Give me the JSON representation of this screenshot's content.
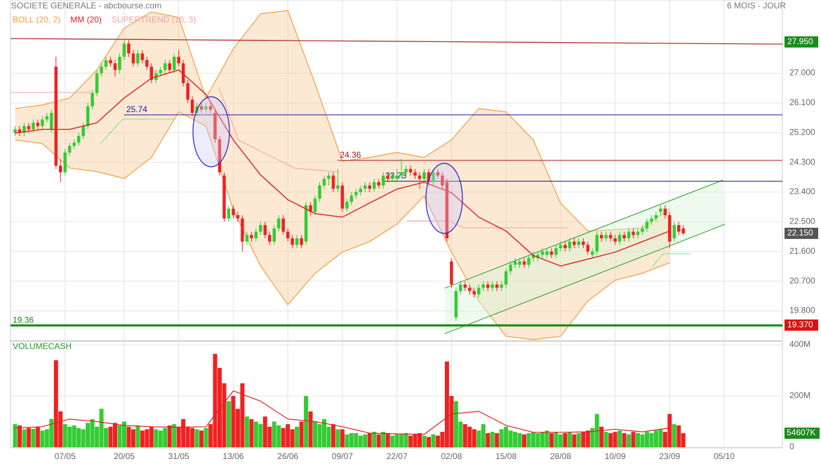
{
  "chart_data": {
    "type": "candlestick",
    "title": "SOCIETE GENERALE - abcbourse.com",
    "period": "6 MOIS - JOUR",
    "legend": [
      {
        "name": "BOLL (20, 2)",
        "color": "#f0a040"
      },
      {
        "name": "MM (20)",
        "color": "#e02020"
      },
      {
        "name": "SUPERTREND (10, 3)",
        "color": "#f4a0a0"
      }
    ],
    "volume_title": "VOLUMECASH",
    "ylim": [
      18.92,
      29.22
    ],
    "yticks": [
      {
        "value": 27,
        "label": "27.000"
      },
      {
        "value": 26.1,
        "label": "26.100"
      },
      {
        "value": 25.2,
        "label": "25.200"
      },
      {
        "value": 24.3,
        "label": "24.300"
      },
      {
        "value": 23.4,
        "label": "23.400"
      },
      {
        "value": 22.5,
        "label": "22.500"
      },
      {
        "value": 21.6,
        "label": "21.600"
      },
      {
        "value": 20.7,
        "label": "20.700"
      },
      {
        "value": 19.8,
        "label": "19.800"
      }
    ],
    "xlim": [
      -1,
      168.8
    ],
    "xticks": [
      {
        "value": 11,
        "label": "07/05"
      },
      {
        "value": 24,
        "label": "20/05"
      },
      {
        "value": 36,
        "label": "31/05"
      },
      {
        "value": 48,
        "label": "13/06"
      },
      {
        "value": 60,
        "label": "26/06"
      },
      {
        "value": 72,
        "label": "09/07"
      },
      {
        "value": 84,
        "label": "22/07"
      },
      {
        "value": 96,
        "label": "02/08"
      },
      {
        "value": 108,
        "label": "15/08"
      },
      {
        "value": 120,
        "label": "28/08"
      },
      {
        "value": 132,
        "label": "10/09"
      },
      {
        "value": 144,
        "label": "23/09"
      },
      {
        "value": 156,
        "label": "05/10"
      }
    ],
    "ohlc": [
      [
        25.2,
        25.4,
        25.1,
        25.3
      ],
      [
        25.3,
        25.4,
        25.1,
        25.2
      ],
      [
        25.2,
        25.5,
        25.1,
        25.4
      ],
      [
        25.4,
        25.5,
        25.2,
        25.3
      ],
      [
        25.3,
        25.6,
        25.2,
        25.5
      ],
      [
        25.5,
        25.6,
        25.3,
        25.4
      ],
      [
        25.4,
        25.7,
        25.3,
        25.6
      ],
      [
        25.6,
        25.8,
        25.5,
        25.7
      ],
      [
        25.3,
        25.9,
        25.2,
        25.8
      ],
      [
        27.2,
        27.5,
        24.1,
        24.2
      ],
      [
        24.2,
        24.4,
        23.7,
        24.0
      ],
      [
        24.0,
        24.7,
        23.9,
        24.6
      ],
      [
        24.6,
        24.9,
        24.5,
        24.8
      ],
      [
        24.8,
        25.0,
        24.7,
        24.9
      ],
      [
        24.9,
        25.2,
        24.8,
        25.1
      ],
      [
        25.1,
        25.5,
        25.0,
        25.4
      ],
      [
        25.4,
        26.1,
        25.3,
        26.0
      ],
      [
        26.0,
        26.5,
        25.9,
        26.4
      ],
      [
        26.4,
        27.1,
        26.3,
        27.0
      ],
      [
        27.0,
        27.3,
        26.9,
        27.2
      ],
      [
        27.2,
        27.5,
        27.1,
        27.4
      ],
      [
        27.4,
        27.5,
        27.2,
        27.3
      ],
      [
        27.3,
        27.4,
        26.9,
        27.1
      ],
      [
        27.1,
        27.6,
        27.0,
        27.5
      ],
      [
        27.5,
        28.0,
        27.4,
        27.9
      ],
      [
        27.9,
        28.0,
        27.5,
        27.6
      ],
      [
        27.6,
        27.7,
        27.2,
        27.3
      ],
      [
        27.3,
        27.7,
        27.2,
        27.6
      ],
      [
        27.6,
        27.7,
        27.3,
        27.4
      ],
      [
        27.4,
        27.5,
        27.1,
        27.2
      ],
      [
        27.2,
        27.3,
        26.7,
        26.8
      ],
      [
        26.8,
        27.1,
        26.7,
        27.0
      ],
      [
        27.0,
        27.2,
        26.9,
        27.1
      ],
      [
        27.1,
        27.4,
        27.0,
        27.3
      ],
      [
        27.3,
        27.4,
        27.0,
        27.1
      ],
      [
        27.1,
        27.6,
        27.0,
        27.5
      ],
      [
        27.5,
        27.7,
        27.2,
        27.3
      ],
      [
        27.3,
        27.4,
        26.6,
        26.7
      ],
      [
        26.7,
        26.8,
        26.1,
        26.2
      ],
      [
        26.2,
        26.3,
        25.7,
        25.8
      ],
      [
        25.8,
        26.1,
        25.7,
        26.0
      ],
      [
        26.0,
        26.1,
        25.8,
        25.9
      ],
      [
        25.9,
        26.1,
        25.8,
        26.0
      ],
      [
        26.0,
        26.1,
        25.8,
        25.9
      ],
      [
        25.8,
        25.9,
        24.9,
        25.0
      ],
      [
        25.0,
        25.1,
        23.9,
        24.0
      ],
      [
        23.9,
        24.0,
        22.5,
        22.6
      ],
      [
        22.6,
        23.0,
        22.5,
        22.9
      ],
      [
        22.9,
        23.0,
        22.6,
        22.7
      ],
      [
        22.7,
        22.8,
        22.5,
        22.6
      ],
      [
        22.6,
        22.7,
        21.6,
        21.9
      ],
      [
        21.9,
        22.2,
        21.8,
        22.1
      ],
      [
        22.1,
        22.2,
        21.9,
        22.0
      ],
      [
        22.0,
        22.3,
        21.9,
        22.2
      ],
      [
        22.2,
        22.5,
        22.1,
        22.4
      ],
      [
        22.4,
        22.5,
        22.0,
        22.1
      ],
      [
        22.1,
        22.2,
        21.8,
        21.9
      ],
      [
        21.9,
        22.4,
        21.8,
        22.3
      ],
      [
        22.3,
        22.7,
        22.2,
        22.6
      ],
      [
        22.6,
        22.7,
        22.1,
        22.2
      ],
      [
        22.2,
        22.3,
        21.9,
        22.0
      ],
      [
        22.0,
        22.1,
        21.7,
        21.8
      ],
      [
        21.8,
        22.1,
        21.7,
        22.0
      ],
      [
        22.0,
        22.1,
        21.7,
        21.8
      ],
      [
        21.9,
        23.1,
        21.8,
        23.0
      ],
      [
        23.0,
        23.1,
        22.7,
        22.8
      ],
      [
        22.8,
        23.3,
        22.7,
        23.2
      ],
      [
        23.2,
        23.7,
        23.1,
        23.6
      ],
      [
        23.6,
        23.9,
        23.5,
        23.8
      ],
      [
        23.8,
        24.0,
        23.6,
        23.9
      ],
      [
        23.9,
        24.0,
        23.4,
        23.5
      ],
      [
        23.5,
        24.1,
        23.4,
        23.6
      ],
      [
        23.6,
        23.7,
        22.8,
        22.9
      ],
      [
        22.9,
        23.2,
        22.8,
        23.1
      ],
      [
        23.1,
        23.4,
        23.0,
        23.3
      ],
      [
        23.3,
        23.5,
        23.2,
        23.4
      ],
      [
        23.4,
        23.6,
        23.3,
        23.5
      ],
      [
        23.5,
        23.7,
        23.4,
        23.6
      ],
      [
        23.6,
        23.7,
        23.4,
        23.5
      ],
      [
        23.5,
        23.8,
        23.4,
        23.7
      ],
      [
        23.7,
        23.8,
        23.5,
        23.6
      ],
      [
        23.6,
        24.0,
        23.5,
        23.9
      ],
      [
        23.9,
        24.0,
        23.7,
        23.8
      ],
      [
        23.8,
        24.0,
        23.7,
        23.9
      ],
      [
        23.8,
        24.1,
        23.7,
        23.9
      ],
      [
        23.9,
        24.4,
        23.8,
        24.0
      ],
      [
        24.0,
        24.2,
        23.9,
        24.1
      ],
      [
        24.1,
        24.2,
        23.9,
        24.0
      ],
      [
        24.0,
        24.1,
        23.8,
        23.9
      ],
      [
        23.9,
        24.0,
        23.5,
        23.8
      ],
      [
        23.8,
        24.1,
        23.7,
        24.0
      ],
      [
        24.0,
        24.1,
        23.6,
        23.7
      ],
      [
        23.7,
        24.1,
        23.6,
        24.0
      ],
      [
        24.0,
        24.1,
        23.8,
        23.9
      ],
      [
        23.9,
        24.0,
        23.5,
        23.6
      ],
      [
        23.7,
        23.8,
        21.9,
        22.0
      ],
      [
        21.3,
        21.4,
        20.5,
        20.6
      ],
      [
        19.6,
        20.5,
        19.5,
        20.4
      ],
      [
        20.4,
        20.7,
        20.3,
        20.6
      ],
      [
        20.6,
        20.7,
        20.4,
        20.5
      ],
      [
        20.5,
        20.6,
        20.3,
        20.4
      ],
      [
        20.4,
        20.5,
        20.2,
        20.3
      ],
      [
        20.3,
        20.6,
        20.2,
        20.5
      ],
      [
        20.5,
        20.7,
        20.4,
        20.6
      ],
      [
        20.6,
        20.7,
        20.4,
        20.5
      ],
      [
        20.5,
        20.7,
        20.4,
        20.6
      ],
      [
        20.6,
        20.7,
        20.4,
        20.5
      ],
      [
        20.5,
        20.7,
        20.4,
        20.6
      ],
      [
        20.6,
        21.1,
        20.5,
        21.0
      ],
      [
        21.0,
        21.3,
        20.9,
        21.2
      ],
      [
        21.2,
        21.4,
        21.1,
        21.3
      ],
      [
        21.2,
        21.4,
        21.1,
        21.3
      ],
      [
        21.3,
        21.4,
        21.1,
        21.2
      ],
      [
        21.2,
        21.5,
        21.1,
        21.4
      ],
      [
        21.4,
        21.6,
        21.3,
        21.5
      ],
      [
        21.4,
        21.6,
        21.3,
        21.5
      ],
      [
        21.5,
        21.7,
        21.4,
        21.6
      ],
      [
        21.5,
        21.7,
        21.4,
        21.6
      ],
      [
        21.6,
        21.7,
        21.4,
        21.5
      ],
      [
        21.5,
        21.8,
        21.4,
        21.7
      ],
      [
        21.7,
        21.9,
        21.6,
        21.8
      ],
      [
        21.8,
        21.9,
        21.6,
        21.7
      ],
      [
        21.7,
        22.0,
        21.6,
        21.9
      ],
      [
        21.9,
        22.0,
        21.7,
        21.8
      ],
      [
        21.8,
        22.0,
        21.7,
        21.9
      ],
      [
        21.9,
        22.0,
        21.7,
        21.8
      ],
      [
        21.8,
        21.9,
        21.5,
        21.6
      ],
      [
        21.5,
        21.7,
        21.4,
        21.6
      ],
      [
        21.6,
        22.2,
        21.5,
        22.1
      ],
      [
        22.1,
        22.2,
        21.9,
        22.0
      ],
      [
        22.0,
        22.2,
        21.9,
        22.1
      ],
      [
        22.1,
        22.2,
        21.9,
        22.0
      ],
      [
        22.0,
        22.1,
        21.8,
        21.9
      ],
      [
        21.9,
        22.2,
        21.8,
        22.1
      ],
      [
        22.1,
        22.2,
        21.9,
        22.0
      ],
      [
        22.0,
        22.3,
        21.9,
        22.2
      ],
      [
        22.2,
        22.3,
        22.0,
        22.1
      ],
      [
        22.1,
        22.3,
        22.0,
        22.2
      ],
      [
        22.2,
        22.4,
        22.1,
        22.3
      ],
      [
        22.3,
        22.6,
        22.2,
        22.5
      ],
      [
        22.5,
        22.7,
        22.4,
        22.6
      ],
      [
        22.6,
        22.8,
        22.5,
        22.7
      ],
      [
        22.8,
        23.0,
        22.7,
        22.9
      ],
      [
        22.9,
        23.0,
        22.6,
        22.7
      ],
      [
        22.7,
        22.8,
        21.7,
        21.9
      ],
      [
        22.0,
        22.5,
        21.9,
        22.4
      ],
      [
        22.4,
        22.5,
        22.1,
        22.2
      ],
      [
        22.3,
        22.4,
        22.1,
        22.15
      ]
    ],
    "up_color": "#33cc33",
    "down_color": "#ee2222",
    "volume": [
      90,
      85,
      70,
      75,
      72,
      80,
      65,
      70,
      110,
      340,
      140,
      90,
      80,
      85,
      75,
      70,
      95,
      110,
      80,
      150,
      75,
      80,
      95,
      85,
      100,
      80,
      70,
      85,
      65,
      70,
      80,
      70,
      65,
      75,
      85,
      90,
      80,
      110,
      80,
      75,
      70,
      65,
      75,
      90,
      365,
      310,
      250,
      180,
      200,
      150,
      250,
      120,
      110,
      100,
      90,
      120,
      80,
      100,
      85,
      75,
      90,
      70,
      80,
      100,
      200,
      140,
      100,
      90,
      110,
      80,
      90,
      70,
      70,
      50,
      55,
      55,
      45,
      50,
      55,
      60,
      50,
      60,
      55,
      45,
      50,
      50,
      55,
      45,
      50,
      55,
      45,
      40,
      50,
      45,
      60,
      335,
      200,
      180,
      100,
      90,
      80,
      70,
      65,
      90,
      55,
      60,
      55,
      70,
      80,
      65,
      60,
      55,
      50,
      55,
      60,
      55,
      60,
      65,
      55,
      60,
      50,
      55,
      60,
      50,
      55,
      60,
      65,
      75,
      130,
      80,
      60,
      55,
      60,
      65,
      55,
      50,
      60,
      55,
      50,
      60,
      55,
      65,
      70,
      60,
      130,
      90,
      85,
      55
    ],
    "volume_ylim": [
      0,
      400
    ],
    "volume_ticks": [
      {
        "value": 400,
        "label": "400M"
      },
      {
        "value": 200,
        "label": "200M"
      },
      0
    ],
    "volume_tag": {
      "value": 54.607,
      "label": "54607K"
    },
    "indicator_x": [
      0,
      6,
      12,
      18,
      24,
      30,
      36,
      42,
      48,
      54,
      60,
      66,
      72,
      78,
      84,
      90,
      96,
      102,
      108,
      114,
      120,
      126,
      132,
      138,
      144
    ],
    "mm20": [
      25.19,
      25.3,
      25.3,
      25.5,
      26.25,
      26.85,
      27.1,
      26.36,
      24.98,
      23.92,
      23.17,
      22.75,
      22.64,
      23.07,
      23.49,
      23.7,
      23.38,
      22.64,
      22.22,
      21.48,
      21.16,
      21.37,
      21.58,
      21.9,
      22.22
    ],
    "boll_upper": [
      25.93,
      26.04,
      26.25,
      27.1,
      28.37,
      28.86,
      28.69,
      26.25,
      27.74,
      28.8,
      28.9,
      26.68,
      24.34,
      24.45,
      24.6,
      24.45,
      24.98,
      25.93,
      25.83,
      24.98,
      23.07,
      22.22,
      22.26,
      22.32,
      22.9
    ],
    "boll_lower": [
      24.98,
      24.87,
      24.13,
      24.02,
      23.81,
      24.45,
      25.83,
      25.4,
      22.86,
      21.16,
      19.99,
      20.94,
      21.58,
      21.9,
      22.43,
      23.28,
      21.58,
      20.1,
      19.03,
      18.93,
      19.03,
      20.1,
      20.73,
      20.94,
      21.26
    ],
    "volume_ma": [
      75,
      80,
      110,
      100,
      85,
      80,
      78,
      80,
      220,
      180,
      110,
      100,
      80,
      55,
      52,
      50,
      130,
      140,
      85,
      58,
      58,
      60,
      70,
      60,
      75
    ],
    "levels": [
      {
        "value": 25.74,
        "label": "25.74",
        "color": "#1a1aa0",
        "from": 24
      },
      {
        "value": 24.36,
        "label": "24.36",
        "color": "#a01a1a",
        "from": 71
      },
      {
        "value": 23.73,
        "label": "23.73",
        "color": "#1a1aa0",
        "from": 81
      },
      {
        "value": 19.36,
        "label": "19.36",
        "color": "#138a13",
        "from": -1
      }
    ],
    "price_tags": [
      {
        "value": 27.95,
        "label": "27.950",
        "color": "#1a8c1a"
      },
      {
        "value": 22.15,
        "label": "22.150",
        "color": "#555555"
      },
      {
        "value": 19.37,
        "label": "19.370",
        "color": "#dd1111"
      }
    ]
  }
}
